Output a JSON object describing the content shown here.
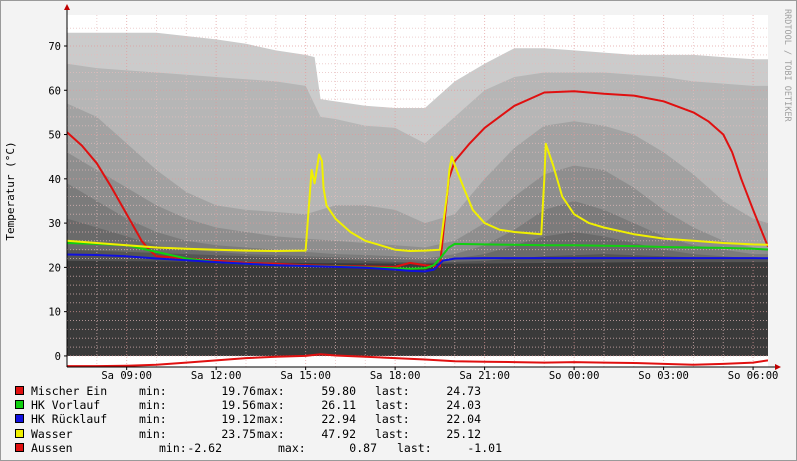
{
  "ylabel": "Temperatur (°C)",
  "watermark": "RRDTOOL / TOBI OETIKER",
  "chart_data": {
    "type": "line",
    "ylabel": "Temperatur (°C)",
    "ylim": [
      -2.5,
      77
    ],
    "y_ticks": [
      0,
      10,
      20,
      30,
      40,
      50,
      60,
      70
    ],
    "xlim": [
      "Sa 07:00",
      "So 06:30"
    ],
    "x_ticks": [
      "Sa 09:00",
      "Sa 12:00",
      "Sa 15:00",
      "Sa 18:00",
      "Sa 21:00",
      "So 00:00",
      "So 03:00",
      "So 06:00"
    ],
    "grid": true,
    "legend": "bottom",
    "series": [
      {
        "name": "Mischer Ein",
        "color": "#e01010",
        "x": [
          0.0,
          0.5,
          1.0,
          1.5,
          2.0,
          2.5,
          2.75,
          3.0,
          4.0,
          5.0,
          6.0,
          7.0,
          8.0,
          9.0,
          10.0,
          11.0,
          11.5,
          12.0,
          12.3,
          12.5,
          12.8,
          13.0,
          13.5,
          14.0,
          14.5,
          15.0,
          16.0,
          17.0,
          18.0,
          19.0,
          20.0,
          21.0,
          21.5,
          22.0,
          22.3,
          22.6,
          23.0,
          23.3,
          23.5
        ],
        "y": [
          50.5,
          47.5,
          43.5,
          38,
          32,
          26,
          24,
          22.5,
          22,
          21.5,
          21,
          20.8,
          20.5,
          20.3,
          20.2,
          20.1,
          21,
          20.5,
          20.3,
          20.2,
          40,
          44,
          48,
          51.5,
          54,
          56.5,
          59.5,
          59.8,
          59.2,
          58.8,
          57.5,
          55,
          53,
          50,
          46,
          40,
          33,
          28,
          24.7
        ]
      },
      {
        "name": "HK Vorlauf",
        "color": "#10d010",
        "x": [
          0.0,
          1.0,
          2.0,
          3.0,
          4.0,
          5.0,
          6.0,
          7.0,
          8.0,
          9.0,
          10.0,
          11.0,
          11.5,
          12.0,
          12.3,
          12.5,
          12.8,
          13.0,
          14.0,
          15.0,
          16.0,
          17.0,
          18.0,
          19.0,
          20.0,
          21.0,
          22.0,
          23.0,
          23.5
        ],
        "y": [
          25.5,
          25.3,
          25,
          23.5,
          22,
          21.2,
          20.8,
          20.5,
          20.3,
          20.2,
          20,
          19.8,
          19.7,
          19.8,
          20.5,
          22,
          24.5,
          25.3,
          25.2,
          25.1,
          25,
          25,
          24.9,
          24.8,
          24.6,
          24.5,
          24.4,
          24.2,
          24.03
        ]
      },
      {
        "name": "HK Rücklauf",
        "color": "#1010e0",
        "x": [
          0.0,
          1.0,
          2.0,
          3.0,
          4.0,
          5.0,
          6.0,
          7.0,
          8.0,
          9.0,
          10.0,
          11.0,
          11.5,
          12.0,
          12.3,
          12.6,
          13.0,
          14.0,
          15.0,
          16.0,
          17.0,
          18.0,
          19.0,
          20.0,
          21.0,
          22.0,
          23.0,
          23.5
        ],
        "y": [
          22.9,
          22.8,
          22.5,
          22,
          21.6,
          21.2,
          20.8,
          20.5,
          20.3,
          20.1,
          19.9,
          19.5,
          19.2,
          19.1,
          19.5,
          21.5,
          22.0,
          22.1,
          22.1,
          22.1,
          22.1,
          22.1,
          22.1,
          22.1,
          22.1,
          22.1,
          22.1,
          22.04
        ]
      },
      {
        "name": "Wasser",
        "color": "#f0f000",
        "x": [
          0.0,
          1.0,
          2.0,
          3.0,
          4.0,
          5.0,
          6.0,
          7.0,
          8.0,
          8.2,
          8.3,
          8.45,
          8.55,
          8.6,
          8.7,
          9.0,
          9.5,
          10.0,
          10.5,
          11.0,
          11.5,
          12.0,
          12.5,
          12.75,
          12.82,
          12.9,
          13.0,
          13.3,
          13.6,
          14.0,
          14.5,
          15.0,
          15.9,
          16.0,
          16.05,
          16.3,
          16.6,
          17.0,
          17.5,
          18.0,
          19.0,
          20.0,
          21.0,
          22.0,
          23.0,
          23.5
        ],
        "y": [
          26,
          25.5,
          25,
          24.5,
          24.2,
          24,
          23.8,
          23.7,
          23.8,
          42,
          39,
          45.5,
          44,
          38,
          34,
          31,
          28,
          26,
          25,
          24,
          23.7,
          23.8,
          24,
          37,
          42,
          45,
          43,
          38,
          33,
          30,
          28.5,
          28,
          27.5,
          40,
          47.9,
          43,
          36,
          32,
          30,
          29,
          27.5,
          26.5,
          26,
          25.5,
          25.2,
          25.12
        ]
      },
      {
        "name": "Aussen",
        "color": "#e01010",
        "x": [
          0.0,
          1.0,
          2.0,
          3.0,
          4.0,
          5.0,
          6.0,
          7.0,
          8.0,
          8.5,
          9.0,
          10.0,
          11.0,
          12.0,
          13.0,
          14.0,
          15.0,
          16.0,
          17.0,
          18.0,
          19.0,
          20.0,
          21.0,
          22.0,
          23.0,
          23.5
        ],
        "y": [
          -2.3,
          -2.3,
          -2.2,
          -2.0,
          -1.5,
          -1.0,
          -0.5,
          -0.2,
          0.0,
          0.4,
          0.1,
          -0.2,
          -0.5,
          -0.8,
          -1.2,
          -1.3,
          -1.4,
          -1.5,
          -1.4,
          -1.5,
          -1.6,
          -1.8,
          -2.0,
          -1.8,
          -1.5,
          -1.01
        ]
      }
    ],
    "background_bands": [
      {
        "name": "band-dark",
        "color": "#232122",
        "y": 20
      },
      {
        "name": "band-1",
        "color": "#cbcbcb",
        "x": [
          0,
          1,
          3,
          5,
          6,
          7,
          8,
          8.3,
          8.5,
          9,
          10,
          11,
          12,
          13,
          14,
          15,
          16,
          17,
          18,
          19,
          20,
          21,
          22,
          23,
          23.5
        ],
        "y": [
          73,
          73,
          73,
          71.5,
          70.5,
          69,
          68,
          67.5,
          58,
          57.5,
          56.5,
          56,
          56,
          62,
          66,
          69.5,
          69.5,
          69,
          68.5,
          68,
          68,
          68,
          67.5,
          67,
          67
        ]
      },
      {
        "name": "band-2",
        "color": "#b6b6b6",
        "x": [
          0,
          1,
          2,
          3,
          4,
          5,
          6,
          7,
          8,
          8.5,
          9,
          10,
          11,
          12,
          13,
          14,
          15,
          16,
          17,
          18,
          19,
          20,
          21,
          22,
          23,
          23.5
        ],
        "y": [
          66,
          65,
          64.5,
          64,
          63.5,
          63,
          62.5,
          62,
          61,
          54,
          53.5,
          52,
          51.5,
          48,
          54,
          60,
          63,
          64,
          64,
          64,
          63.5,
          63,
          62,
          61.5,
          61,
          61
        ]
      },
      {
        "name": "band-3",
        "color": "#a2a2a2",
        "x": [
          0,
          1,
          2,
          3,
          4,
          5,
          6,
          7,
          8,
          9,
          10,
          11,
          12,
          13,
          14,
          15,
          16,
          17,
          18,
          19,
          20,
          21,
          22,
          23,
          23.5
        ],
        "y": [
          57,
          54,
          48,
          42,
          37,
          34,
          33,
          32.5,
          32,
          34,
          34,
          33,
          30,
          32,
          40,
          47,
          52,
          53,
          52,
          50,
          46,
          41,
          35,
          31,
          30
        ]
      },
      {
        "name": "band-4",
        "color": "#8e8e8e",
        "x": [
          0,
          1,
          2,
          3,
          4,
          5,
          6,
          7,
          8,
          9,
          10,
          11,
          12,
          13,
          14,
          15,
          16,
          17,
          18,
          19,
          20,
          21,
          22,
          23,
          23.5
        ],
        "y": [
          46,
          42,
          38,
          34,
          31,
          29,
          28,
          27,
          26.5,
          26,
          25.5,
          25,
          24.5,
          26,
          30,
          36,
          41,
          43,
          42,
          38,
          33,
          29,
          26,
          24.5,
          24
        ]
      },
      {
        "name": "band-5",
        "color": "#7b7b7b",
        "x": [
          0,
          1,
          2,
          3,
          4,
          5,
          6,
          7,
          8,
          9,
          10,
          11,
          12,
          13,
          14,
          15,
          16,
          17,
          18,
          19,
          20,
          21,
          22,
          23,
          23.5
        ],
        "y": [
          39,
          35,
          31,
          28,
          26,
          25,
          24.5,
          24,
          23.5,
          23,
          22.8,
          22.5,
          22,
          23,
          25,
          28.5,
          33,
          35,
          33,
          30,
          27,
          25,
          24,
          23,
          23
        ]
      },
      {
        "name": "band-6",
        "color": "#6a6a6a",
        "x": [
          0,
          1,
          2,
          3,
          4,
          5,
          6,
          7,
          8,
          9,
          10,
          11,
          12,
          13,
          14,
          15,
          16,
          17,
          18,
          19,
          20,
          21,
          22,
          23,
          23.5
        ],
        "y": [
          31,
          29,
          27,
          25,
          24,
          23.5,
          23,
          22.8,
          22.5,
          22.3,
          22,
          21.8,
          21.5,
          22,
          23,
          25,
          27,
          28,
          27,
          25.5,
          24,
          23,
          22.5,
          22,
          22
        ]
      },
      {
        "name": "band-7",
        "color": "#555555",
        "x": [
          0,
          2,
          4,
          6,
          8,
          10,
          12,
          14,
          16,
          18,
          20,
          22,
          23.5
        ],
        "y": [
          24,
          23.5,
          23,
          22.5,
          22,
          21.5,
          21,
          21.5,
          22.5,
          23,
          22.5,
          22,
          22
        ]
      },
      {
        "name": "band-8",
        "color": "#3a3a3a",
        "x": [
          0,
          4,
          8,
          12,
          16,
          20,
          23.5
        ],
        "y": [
          21.5,
          21.3,
          21,
          20.8,
          21,
          21.2,
          21.2
        ]
      }
    ]
  },
  "legend": [
    {
      "color": "#e01010",
      "name": "Mischer Ein",
      "min_label": "min:",
      "min": "19.76",
      "max_label": "max:",
      "max": "59.80",
      "last_label": "last:",
      "last": "24.73"
    },
    {
      "color": "#10d010",
      "name": "HK Vorlauf",
      "min_label": "min:",
      "min": "19.56",
      "max_label": "max:",
      "max": "26.11",
      "last_label": "last:",
      "last": "24.03"
    },
    {
      "color": "#1010e0",
      "name": "HK Rücklauf",
      "min_label": "min:",
      "min": "19.12",
      "max_label": "max:",
      "max": "22.94",
      "last_label": "last:",
      "last": "22.04"
    },
    {
      "color": "#f0f000",
      "name": "Wasser",
      "min_label": "min:",
      "min": "23.75",
      "max_label": "max:",
      "max": "47.92",
      "last_label": "last:",
      "last": "25.12"
    },
    {
      "color": "#e01010",
      "name": "Aussen",
      "min_label": "min:",
      "min": "-2.62",
      "max_label": "max:",
      "max": "0.87",
      "last_label": "last:",
      "last": "-1.01"
    }
  ]
}
